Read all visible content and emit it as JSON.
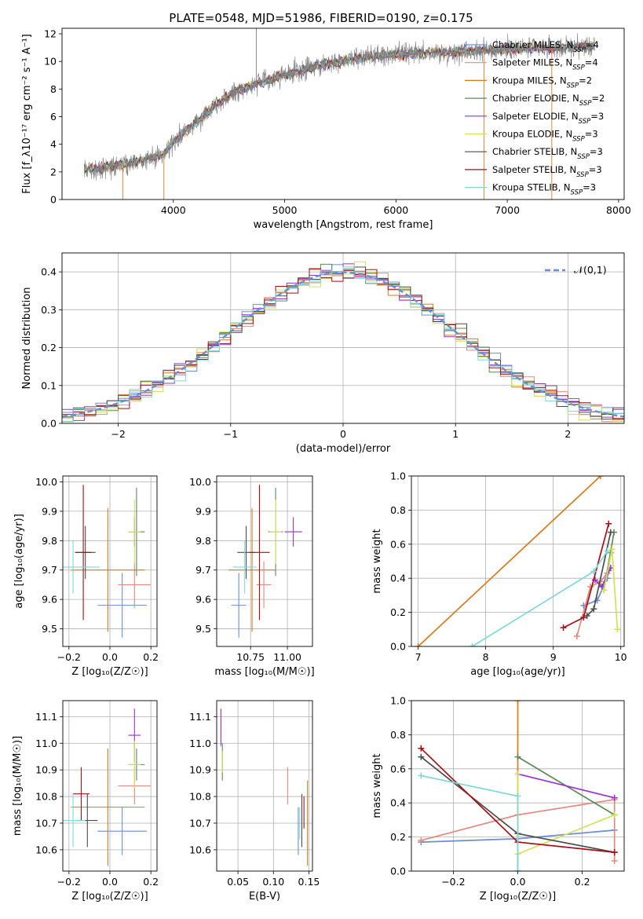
{
  "chart_data": [
    {
      "id": "spectrum",
      "type": "line",
      "title": "PLATE=0548, MJD=51986, FIBERID=0190, z=0.175",
      "xlabel": "wavelength [Angstrom, rest frame]",
      "ylabel": "Flux [f_λ10⁻¹⁷ erg cm⁻² s⁻¹ A⁻¹]",
      "xlim": [
        3000,
        8050
      ],
      "ylim": [
        0,
        12.4
      ],
      "xticks": [
        4000,
        5000,
        6000,
        7000,
        8000
      ],
      "yticks": [
        0,
        2,
        4,
        6,
        8,
        10,
        12
      ],
      "grid": false,
      "legend_position": "top-right",
      "data_line": {
        "color": "#7f7f7f",
        "x_range": [
          3200,
          7790
        ]
      },
      "continuum_anchors": {
        "x": [
          3200,
          3600,
          3900,
          4000,
          4200,
          4400,
          4600,
          5000,
          5300,
          5600,
          6000,
          6500,
          7000,
          7500,
          7790
        ],
        "y": [
          2.1,
          2.6,
          3.2,
          4.1,
          5.6,
          7.0,
          8.0,
          9.0,
          9.7,
          10.2,
          10.5,
          10.7,
          10.9,
          11.0,
          11.1
        ]
      },
      "series": [
        {
          "name": "Chabrier MILES, N",
          "sub": "SSP",
          "suffix": "=4",
          "color": "#6a8ed3"
        },
        {
          "name": "Salpeter MILES, N",
          "sub": "SSP",
          "suffix": "=4",
          "color": "#e08a80"
        },
        {
          "name": "Kroupa MILES, N",
          "sub": "SSP",
          "suffix": "=2",
          "color": "#d97a1e"
        },
        {
          "name": "Chabrier ELODIE, N",
          "sub": "SSP",
          "suffix": "=2",
          "color": "#5a8a5a"
        },
        {
          "name": "Salpeter ELODIE, N",
          "sub": "SSP",
          "suffix": "=3",
          "color": "#9932cc"
        },
        {
          "name": "Kroupa ELODIE, N",
          "sub": "SSP",
          "suffix": "=3",
          "color": "#d4e157"
        },
        {
          "name": "Chabrier STELIB, N",
          "sub": "SSP",
          "suffix": "=3",
          "color": "#4d4d4d"
        },
        {
          "name": "Salpeter STELIB, N",
          "sub": "SSP",
          "suffix": "=3",
          "color": "#a50f15"
        },
        {
          "name": "Kroupa STELIB, N",
          "sub": "SSP",
          "suffix": "=3",
          "color": "#80d8d8"
        }
      ]
    },
    {
      "id": "residual-histogram",
      "type": "line",
      "xlabel": "(data-model)/error",
      "ylabel": "Normed distribution",
      "xlim": [
        -2.5,
        2.5
      ],
      "ylim": [
        0,
        0.45
      ],
      "xticks": [
        -2,
        -1,
        0,
        1,
        2
      ],
      "yticks": [
        0.0,
        0.1,
        0.2,
        0.3,
        0.4
      ],
      "grid": true,
      "legend_position": "top-right",
      "legend": "𝒩(0,1)",
      "reference_curve": {
        "name": "𝒩(0,1)",
        "mean": 0,
        "sigma": 1,
        "color": "#6a8ed3",
        "style": "dashed"
      },
      "series_colors": [
        "#6a8ed3",
        "#e08a80",
        "#d97a1e",
        "#5a8a5a",
        "#9932cc",
        "#d4e157",
        "#4d4d4d",
        "#a50f15",
        "#80d8d8"
      ]
    },
    {
      "id": "age-vs-metallicity",
      "type": "scatter",
      "xlabel": "Z [log₁₀(Z/Z☉)]",
      "ylabel": "age  [log₁₀(age/yr)]",
      "xlim": [
        -0.23,
        0.23
      ],
      "ylim": [
        9.44,
        10.02
      ],
      "xticks": [
        -0.2,
        0.0,
        0.2
      ],
      "yticks": [
        9.5,
        9.6,
        9.7,
        9.8,
        9.9,
        10.0
      ],
      "grid": true,
      "points": [
        {
          "color": "#6a8ed3",
          "x": 0.06,
          "xerr": 0.12,
          "y": 9.58,
          "yerr": 0.11
        },
        {
          "color": "#e08a80",
          "x": 0.12,
          "xerr": 0.08,
          "y": 9.65,
          "yerr": 0.08
        },
        {
          "color": "#d97a1e",
          "x": -0.01,
          "xerr": 0.18,
          "y": 9.7,
          "yerr": 0.21
        },
        {
          "color": "#5a8a5a",
          "x": 0.13,
          "xerr": 0.04,
          "y": 9.83,
          "yerr": 0.15
        },
        {
          "color": "#9932cc",
          "x": 0.12,
          "xerr": 0.03,
          "y": 9.83,
          "yerr": 0.05
        },
        {
          "color": "#d4e157",
          "x": 0.12,
          "xerr": 0.03,
          "y": 9.83,
          "yerr": 0.11
        },
        {
          "color": "#4d4d4d",
          "x": -0.12,
          "xerr": 0.05,
          "y": 9.76,
          "yerr": 0.09
        },
        {
          "color": "#a50f15",
          "x": -0.13,
          "xerr": 0.04,
          "y": 9.76,
          "yerr": 0.23
        },
        {
          "color": "#80d8d8",
          "x": -0.18,
          "xerr": 0.13,
          "y": 9.71,
          "yerr": 0.09
        }
      ]
    },
    {
      "id": "age-vs-mass",
      "type": "scatter",
      "xlabel": "mass [log₁₀(M/M☉)]",
      "ylabel": "",
      "xlim": [
        10.52,
        11.17
      ],
      "ylim": [
        9.44,
        10.02
      ],
      "xticks": [
        10.75,
        11.0
      ],
      "yticks": [
        9.5,
        9.6,
        9.7,
        9.8,
        9.9,
        10.0
      ],
      "grid": true,
      "points": [
        {
          "color": "#6a8ed3",
          "x": 10.67,
          "xerr": 0.05,
          "y": 9.58,
          "yerr": 0.11
        },
        {
          "color": "#e08a80",
          "x": 10.84,
          "xerr": 0.05,
          "y": 9.65,
          "yerr": 0.08
        },
        {
          "color": "#d97a1e",
          "x": 10.76,
          "xerr": 0.16,
          "y": 9.7,
          "yerr": 0.21
        },
        {
          "color": "#5a8a5a",
          "x": 10.92,
          "xerr": 0.05,
          "y": 9.83,
          "yerr": 0.15
        },
        {
          "color": "#9932cc",
          "x": 11.04,
          "xerr": 0.06,
          "y": 9.83,
          "yerr": 0.05
        },
        {
          "color": "#d4e157",
          "x": 10.92,
          "xerr": 0.04,
          "y": 9.83,
          "yerr": 0.11
        },
        {
          "color": "#4d4d4d",
          "x": 10.72,
          "xerr": 0.06,
          "y": 9.76,
          "yerr": 0.09
        },
        {
          "color": "#a50f15",
          "x": 10.81,
          "xerr": 0.07,
          "y": 9.76,
          "yerr": 0.23
        },
        {
          "color": "#80d8d8",
          "x": 10.71,
          "xerr": 0.08,
          "y": 9.71,
          "yerr": 0.09
        }
      ]
    },
    {
      "id": "mass-weight-vs-age",
      "type": "line",
      "xlabel": "age  [log₁₀(age/yr)]",
      "ylabel": "mass weight",
      "xlim": [
        6.9,
        10.05
      ],
      "ylim": [
        0,
        1.0
      ],
      "xticks": [
        7,
        8,
        9,
        10
      ],
      "yticks": [
        0.0,
        0.2,
        0.4,
        0.6,
        0.8,
        1.0
      ],
      "grid": true,
      "series": [
        {
          "color": "#6a8ed3",
          "x": [
            9.45,
            9.65,
            9.8,
            9.85
          ],
          "y": [
            0.24,
            0.27,
            0.4,
            0.55
          ]
        },
        {
          "color": "#e08a80",
          "x": [
            9.35,
            9.55,
            9.7,
            9.8
          ],
          "y": [
            0.06,
            0.35,
            0.38,
            0.43
          ]
        },
        {
          "color": "#d97a1e",
          "x": [
            7.0,
            9.7
          ],
          "y": [
            0.0,
            1.0
          ]
        },
        {
          "color": "#5a8a5a",
          "x": [
            9.75,
            9.9
          ],
          "y": [
            0.33,
            0.67
          ]
        },
        {
          "color": "#9932cc",
          "x": [
            9.62,
            9.72,
            9.85
          ],
          "y": [
            0.39,
            0.35,
            0.46
          ]
        },
        {
          "color": "#d4e157",
          "x": [
            9.75,
            9.87,
            9.95
          ],
          "y": [
            0.33,
            0.57,
            0.1
          ]
        },
        {
          "color": "#4d4d4d",
          "x": [
            9.5,
            9.6,
            9.85
          ],
          "y": [
            0.18,
            0.22,
            0.67
          ]
        },
        {
          "color": "#a50f15",
          "x": [
            9.15,
            9.45,
            9.82
          ],
          "y": [
            0.11,
            0.17,
            0.72
          ]
        },
        {
          "color": "#80d8d8",
          "x": [
            7.8,
            9.6,
            9.8
          ],
          "y": [
            0.0,
            0.44,
            0.56
          ]
        }
      ]
    },
    {
      "id": "mass-vs-metallicity",
      "type": "scatter",
      "xlabel": "Z [log₁₀(Z/Z☉)]",
      "ylabel": "mass [log₁₀(M/M☉)]",
      "xlim": [
        -0.23,
        0.23
      ],
      "ylim": [
        10.52,
        11.16
      ],
      "xticks": [
        -0.2,
        0.0,
        0.2
      ],
      "yticks": [
        10.6,
        10.7,
        10.8,
        10.9,
        11.0,
        11.1
      ],
      "grid": true,
      "points": [
        {
          "color": "#6a8ed3",
          "x": 0.06,
          "xerr": 0.12,
          "y": 10.67,
          "yerr": 0.09
        },
        {
          "color": "#e08a80",
          "x": 0.12,
          "xerr": 0.08,
          "y": 10.84,
          "yerr": 0.07
        },
        {
          "color": "#d97a1e",
          "x": -0.01,
          "xerr": 0.18,
          "y": 10.76,
          "yerr": 0.22
        },
        {
          "color": "#5a8a5a",
          "x": 0.13,
          "xerr": 0.04,
          "y": 10.92,
          "yerr": 0.06
        },
        {
          "color": "#9932cc",
          "x": 0.12,
          "xerr": 0.03,
          "y": 11.03,
          "yerr": 0.1
        },
        {
          "color": "#d4e157",
          "x": 0.12,
          "xerr": 0.03,
          "y": 10.92,
          "yerr": 0.09
        },
        {
          "color": "#4d4d4d",
          "x": -0.11,
          "xerr": 0.05,
          "y": 10.71,
          "yerr": 0.1
        },
        {
          "color": "#a50f15",
          "x": -0.14,
          "xerr": 0.04,
          "y": 10.81,
          "yerr": 0.1
        },
        {
          "color": "#80d8d8",
          "x": -0.18,
          "xerr": 0.06,
          "y": 10.71,
          "yerr": 0.1
        }
      ]
    },
    {
      "id": "mass-vs-extinction",
      "type": "scatter",
      "xlabel": "E(B-V)",
      "ylabel": "",
      "xlim": [
        0.02,
        0.155
      ],
      "ylim": [
        10.52,
        11.16
      ],
      "xticks": [
        0.05,
        0.1,
        0.15
      ],
      "yticks": [
        10.6,
        10.7,
        10.8,
        10.9,
        11.0,
        11.1
      ],
      "grid": true,
      "points": [
        {
          "color": "#6a8ed3",
          "x": 0.135,
          "y": 10.67,
          "yerr": 0.09
        },
        {
          "color": "#e08a80",
          "x": 0.12,
          "y": 10.84,
          "yerr": 0.07
        },
        {
          "color": "#d97a1e",
          "x": 0.148,
          "y": 10.7,
          "yerr": 0.16
        },
        {
          "color": "#5a8a5a",
          "x": 0.028,
          "y": 10.93,
          "yerr": 0.07
        },
        {
          "color": "#9932cc",
          "x": 0.026,
          "y": 11.06,
          "yerr": 0.07
        },
        {
          "color": "#d4e157",
          "x": 0.028,
          "y": 10.93,
          "yerr": 0.04
        },
        {
          "color": "#4d4d4d",
          "x": 0.14,
          "y": 10.71,
          "yerr": 0.1
        },
        {
          "color": "#a50f15",
          "x": 0.143,
          "y": 10.74,
          "yerr": 0.06
        },
        {
          "color": "#80d8d8",
          "x": 0.137,
          "y": 10.7,
          "yerr": 0.06
        }
      ]
    },
    {
      "id": "mass-weight-vs-metallicity",
      "type": "line",
      "xlabel": "Z [log₁₀(Z/Z☉)]",
      "ylabel": "mass weight",
      "xlim": [
        -0.33,
        0.33
      ],
      "ylim": [
        0,
        1.0
      ],
      "xticks": [
        -0.2,
        0.0,
        0.2
      ],
      "yticks": [
        0.0,
        0.2,
        0.4,
        0.6,
        0.8,
        1.0
      ],
      "grid": true,
      "series": [
        {
          "color": "#6a8ed3",
          "x": [
            -0.3,
            0.0,
            0.3
          ],
          "y": [
            0.17,
            0.19,
            0.24
          ]
        },
        {
          "color": "#e08a80",
          "x": [
            -0.3,
            0.0,
            0.3,
            0.3
          ],
          "y": [
            0.18,
            0.33,
            0.42,
            0.06
          ]
        },
        {
          "color": "#d97a1e",
          "x": [
            0.0,
            0.0
          ],
          "y": [
            0.0,
            1.0
          ]
        },
        {
          "color": "#5a8a5a",
          "x": [
            0.0,
            0.3
          ],
          "y": [
            0.67,
            0.33
          ]
        },
        {
          "color": "#9932cc",
          "x": [
            0.0,
            0.3
          ],
          "y": [
            0.57,
            0.43
          ]
        },
        {
          "color": "#d4e157",
          "x": [
            0.0,
            0.0,
            0.3
          ],
          "y": [
            0.57,
            0.1,
            0.33
          ]
        },
        {
          "color": "#4d4d4d",
          "x": [
            -0.3,
            0.0,
            0.3
          ],
          "y": [
            0.67,
            0.22,
            0.11
          ]
        },
        {
          "color": "#a50f15",
          "x": [
            -0.3,
            0.0,
            0.3
          ],
          "y": [
            0.72,
            0.17,
            0.11
          ]
        },
        {
          "color": "#80d8d8",
          "x": [
            -0.3,
            0.0,
            0.0
          ],
          "y": [
            0.56,
            0.44,
            0.0
          ]
        }
      ]
    }
  ]
}
